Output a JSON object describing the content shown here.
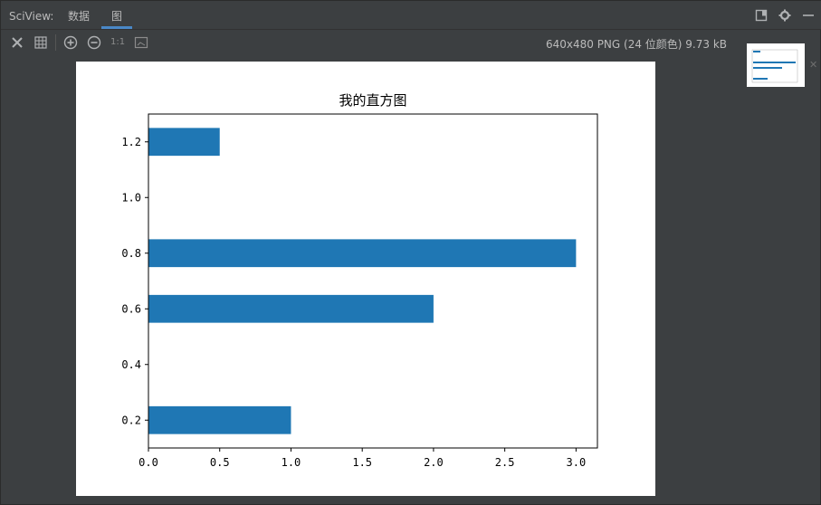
{
  "app": {
    "title": "SciView:"
  },
  "tabs": [
    {
      "label": "数据"
    },
    {
      "label": "图"
    }
  ],
  "window_icons": [
    "restore-icon",
    "gear-icon",
    "minimize-icon"
  ],
  "toolbar": {
    "icons": [
      "fit-icon",
      "grid-icon",
      "zoom-in-icon",
      "zoom-out-icon",
      "actual-size-icon",
      "fit-image-icon"
    ],
    "actual_size_label": "1:1",
    "image_info": "640x480 PNG (24 位颜色) 9.73 kB"
  },
  "colors": {
    "bar": "#1f77b4",
    "accent": "#4a88c7",
    "background": "#3c3f41"
  },
  "chart_data": {
    "type": "bar",
    "orientation": "horizontal",
    "title": "我的直方图",
    "xlabel": "",
    "ylabel": "",
    "y": [
      0.2,
      0.6,
      0.8,
      1.2
    ],
    "values": [
      1.0,
      2.0,
      3.0,
      0.5
    ],
    "bar_height": 0.1,
    "xlim": [
      0.0,
      3.15
    ],
    "ylim": [
      0.1,
      1.3
    ],
    "xticks": [
      "0.0",
      "0.5",
      "1.0",
      "1.5",
      "2.0",
      "2.5",
      "3.0"
    ],
    "yticks": [
      "0.2",
      "0.4",
      "0.6",
      "0.8",
      "1.0",
      "1.2"
    ],
    "grid": false,
    "legend": "none"
  }
}
